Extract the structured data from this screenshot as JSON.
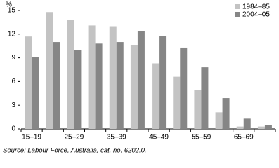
{
  "chart_data": {
    "type": "bar",
    "ylabel": "%",
    "categories": [
      "15–19",
      null,
      "25–29",
      null,
      "35–39",
      null,
      "45–49",
      null,
      "55–59",
      null,
      "65–69",
      null
    ],
    "series": [
      {
        "name": "1984–85",
        "color": "#c3c3c3",
        "values": [
          11.7,
          14.8,
          13.8,
          13.1,
          13.0,
          10.6,
          8.3,
          6.6,
          4.9,
          2.1,
          0.3,
          0.3
        ]
      },
      {
        "name": "2004–05",
        "color": "#868686",
        "values": [
          9.1,
          11.0,
          10.0,
          10.8,
          11.0,
          12.4,
          11.8,
          10.3,
          7.8,
          3.9,
          1.3,
          0.5
        ]
      }
    ],
    "ylim": [
      0,
      15
    ],
    "yticks": [
      0,
      3,
      6,
      9,
      12,
      15
    ],
    "legend": "top-right",
    "source": "Source: Labour Force, Australia, cat. no. 6202.0."
  }
}
